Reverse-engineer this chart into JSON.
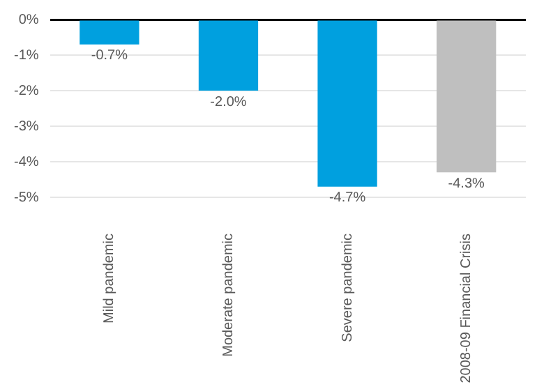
{
  "chart_data": {
    "type": "bar",
    "categories": [
      "Mild pandemic",
      "Moderate pandemic",
      "Severe pandemic",
      "2008-09 Financial Crisis"
    ],
    "values": [
      -0.7,
      -2.0,
      -4.7,
      -4.3
    ],
    "colors": [
      "#00a0df",
      "#00a0df",
      "#00a0df",
      "#bfbfbf"
    ],
    "ylim": [
      -5,
      0
    ],
    "yticks": [
      {
        "value": 0,
        "label": "0%"
      },
      {
        "value": -1,
        "label": "-1%"
      },
      {
        "value": -2,
        "label": "-2%"
      },
      {
        "value": -3,
        "label": "-3%"
      },
      {
        "value": -4,
        "label": "-4%"
      },
      {
        "value": -5,
        "label": "-5%"
      }
    ],
    "value_labels": [
      "-0.7%",
      "-2.0%",
      "-4.7%",
      "-4.3%"
    ],
    "grid": "y"
  }
}
